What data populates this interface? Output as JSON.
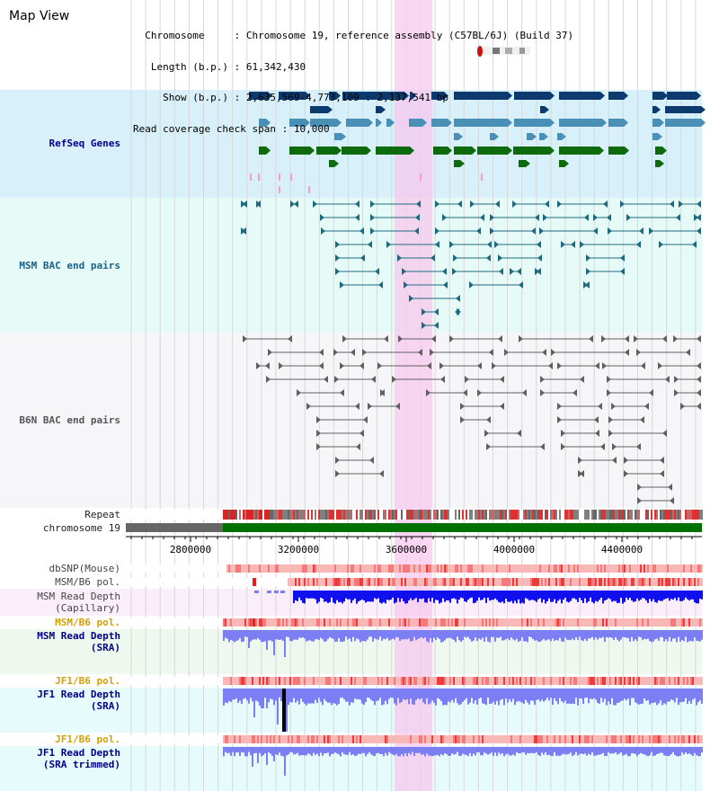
{
  "view_title": "Map View",
  "info": {
    "chromosome_label": "Chromosome",
    "chromosome_value": "Chromosome 19, reference assembly (C57BL/6J) (Build 37)",
    "length_label": "Length (b.p.)",
    "length_value": "61,342,430",
    "show_label": "Show (b.p.)",
    "show_value": "2,635,569-4,773,109 : 2,137,541 bp",
    "coverage_label": "Read coverage check span",
    "coverage_value": "10,000"
  },
  "axis_ticks": [
    "2800000",
    "3200000",
    "3600000",
    "4000000",
    "4400000"
  ],
  "tracks": {
    "refseq": "RefSeq Genes",
    "msm_bac": "MSM BAC end pairs",
    "b6n_bac": "B6N BAC end pairs",
    "repeat": "Repeat",
    "chromosome": "chromosome 19",
    "dbsnp": "dbSNP(Mouse)",
    "msm_b6_pol_1": "MSM/B6 pol.",
    "msm_depth_cap": "MSM Read Depth\n(Capillary)",
    "msm_b6_pol_2": "MSM/B6 pol.",
    "msm_depth_sra": "MSM Read Depth\n(SRA)",
    "jf1_b6_pol_1": "JF1/B6 pol.",
    "jf1_depth_sra": "JF1 Read Depth\n(SRA)",
    "jf1_b6_pol_2": "JF1/B6 pol.",
    "jf1_depth_trim": "JF1 Read Depth\n(SRA trimmed)"
  },
  "colors": {
    "refseq_bg": "#d8f0fa",
    "msm_bac_bg": "#e6fbf8",
    "b6n_bac_bg": "#f6f6f8",
    "highlight": "#f7c8ee",
    "gene_dark": "#0c3a6e",
    "gene_mid": "#4a8fb5",
    "gene_green": "#0d6b0d",
    "msm_pair": "#1d6a80",
    "b6n_pair": "#606060",
    "label_blue": "#00008b",
    "label_teal": "#1a5f86",
    "label_orange": "#d4a000",
    "depth_blue": "#1010ee",
    "depth_light": "#7c7ef4",
    "pol_red": "#ee3b3b",
    "pol_pink": "#f8b8b8",
    "chrom_green": "#007000"
  }
}
